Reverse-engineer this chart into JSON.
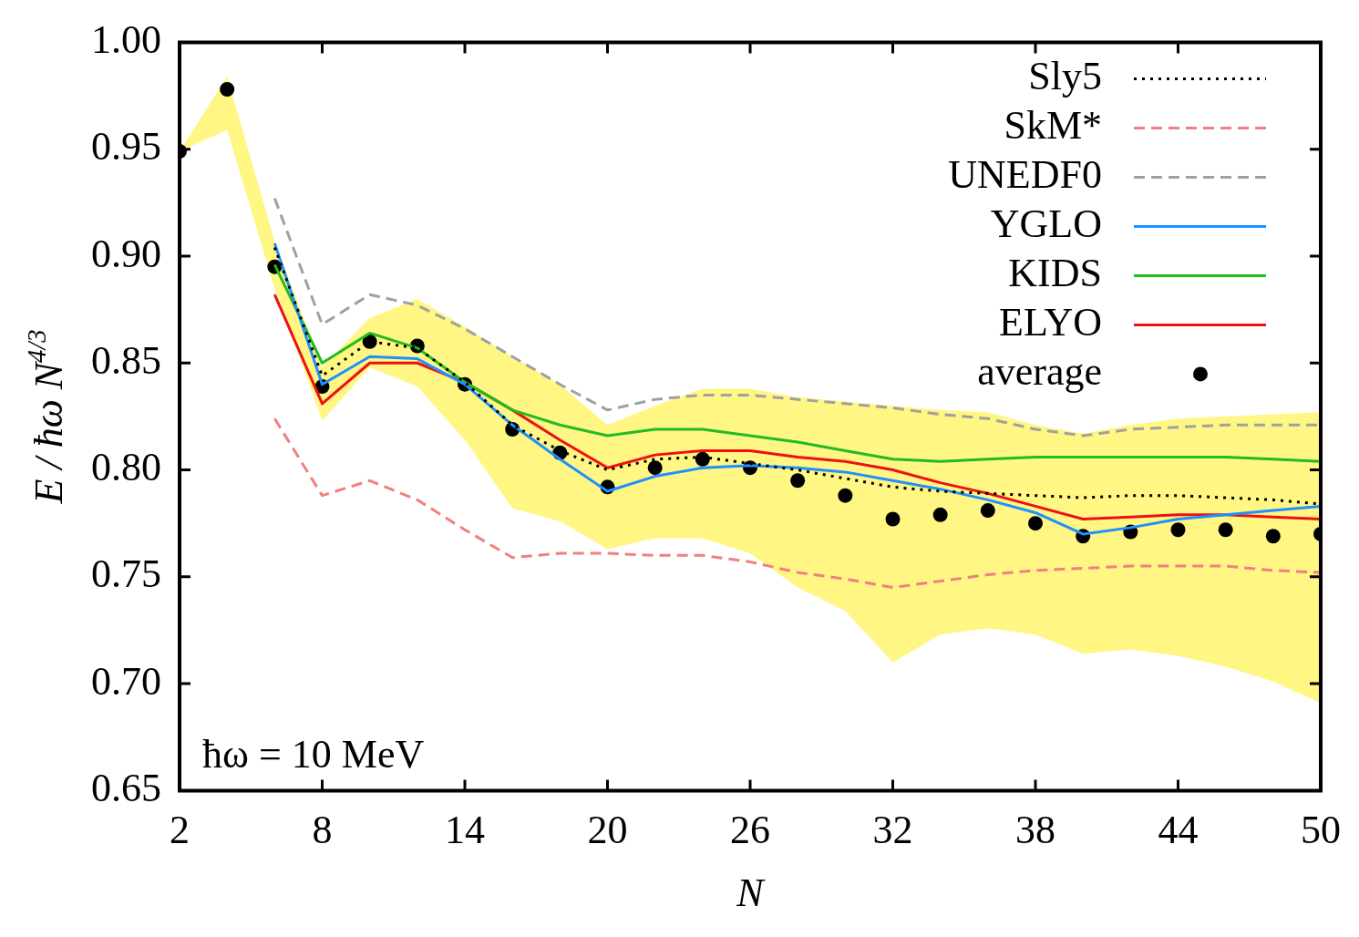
{
  "chart_data": {
    "type": "line",
    "xlabel": "N",
    "ylabel": "E / ħω N$^{4/3}$",
    "annotations": [
      "ħω = 10 MeV"
    ],
    "x": [
      2,
      4,
      6,
      8,
      10,
      12,
      14,
      16,
      18,
      20,
      22,
      24,
      26,
      28,
      30,
      32,
      34,
      36,
      38,
      40,
      42,
      44,
      46,
      48,
      50
    ],
    "xlim": [
      2,
      50
    ],
    "xticks": [
      2,
      8,
      14,
      20,
      26,
      32,
      38,
      44,
      50
    ],
    "ylim": [
      0.65,
      1.0
    ],
    "yticks": [
      {
        "value": 0.65,
        "label": "0.65"
      },
      {
        "value": 0.7,
        "label": "0.70"
      },
      {
        "value": 0.75,
        "label": "0.75"
      },
      {
        "value": 0.8,
        "label": "0.80"
      },
      {
        "value": 0.85,
        "label": "0.85"
      },
      {
        "value": 0.9,
        "label": "0.90"
      },
      {
        "value": 0.95,
        "label": "0.95"
      },
      {
        "value": 1.0,
        "label": "1.00"
      }
    ],
    "grid": false,
    "legend": "top right",
    "series": [
      {
        "name": "Sly5",
        "color": "#000000",
        "line_style": "dotted",
        "values": [
          null,
          null,
          0.904,
          0.844,
          0.86,
          0.857,
          0.841,
          0.821,
          0.809,
          0.8,
          0.805,
          0.806,
          0.803,
          0.8,
          0.796,
          0.792,
          0.79,
          0.789,
          0.788,
          0.787,
          0.788,
          0.788,
          0.787,
          0.786,
          0.784
        ]
      },
      {
        "name": "SkM*",
        "color": "#f08080",
        "line_style": "dashed",
        "values": [
          null,
          null,
          0.824,
          0.788,
          0.795,
          0.786,
          0.772,
          0.759,
          0.761,
          0.761,
          0.76,
          0.76,
          0.757,
          0.752,
          0.749,
          0.745,
          0.748,
          0.751,
          0.753,
          0.754,
          0.755,
          0.755,
          0.755,
          0.753,
          0.752
        ]
      },
      {
        "name": "UNEDF0",
        "color": "#a0a0a0",
        "line_style": "dashed",
        "values": [
          null,
          null,
          0.927,
          0.868,
          0.882,
          0.877,
          0.866,
          0.853,
          0.84,
          0.828,
          0.833,
          0.835,
          0.835,
          0.833,
          0.831,
          0.829,
          0.826,
          0.824,
          0.819,
          0.816,
          0.819,
          0.82,
          0.821,
          0.821,
          0.821
        ]
      },
      {
        "name": "YGLO",
        "color": "#1e90ff",
        "line_style": "solid",
        "values": [
          null,
          null,
          0.906,
          0.84,
          0.853,
          0.852,
          0.84,
          0.821,
          0.805,
          0.79,
          0.797,
          0.801,
          0.802,
          0.801,
          0.799,
          0.795,
          0.791,
          0.786,
          0.78,
          0.77,
          0.773,
          0.777,
          0.779,
          0.781,
          0.783
        ]
      },
      {
        "name": "KIDS",
        "color": "#22bb22",
        "line_style": "solid",
        "values": [
          null,
          null,
          0.896,
          0.85,
          0.864,
          0.857,
          0.841,
          0.828,
          0.821,
          0.816,
          0.819,
          0.819,
          0.816,
          0.813,
          0.809,
          0.805,
          0.804,
          0.805,
          0.806,
          0.806,
          0.806,
          0.806,
          0.806,
          0.805,
          0.804
        ]
      },
      {
        "name": "ELYO",
        "color": "#ee1111",
        "line_style": "solid",
        "values": [
          null,
          null,
          0.882,
          0.831,
          0.85,
          0.85,
          0.841,
          0.828,
          0.814,
          0.801,
          0.807,
          0.809,
          0.809,
          0.806,
          0.804,
          0.8,
          0.794,
          0.789,
          0.783,
          0.777,
          0.778,
          0.779,
          0.779,
          0.778,
          0.777
        ]
      },
      {
        "name": "average",
        "type": "scatter",
        "color": "#000000",
        "marker": "circle",
        "values": [
          0.949,
          0.978,
          0.895,
          0.839,
          0.86,
          0.858,
          0.84,
          0.819,
          0.808,
          0.792,
          0.801,
          0.805,
          0.801,
          0.795,
          0.788,
          0.777,
          0.779,
          0.781,
          0.775,
          0.769,
          0.771,
          0.772,
          0.772,
          0.769,
          0.77
        ],
        "lower": [
          0.949,
          0.959,
          0.885,
          0.823,
          0.848,
          0.839,
          0.814,
          0.782,
          0.776,
          0.763,
          0.768,
          0.768,
          0.761,
          0.745,
          0.734,
          0.71,
          0.723,
          0.726,
          0.723,
          0.714,
          0.716,
          0.713,
          0.708,
          0.701,
          0.691
        ],
        "upper": [
          0.949,
          0.984,
          0.907,
          0.848,
          0.871,
          0.88,
          0.867,
          0.853,
          0.84,
          0.821,
          0.83,
          0.838,
          0.838,
          0.834,
          0.832,
          0.83,
          0.828,
          0.827,
          0.821,
          0.817,
          0.821,
          0.824,
          0.825,
          0.826,
          0.827
        ]
      }
    ]
  }
}
